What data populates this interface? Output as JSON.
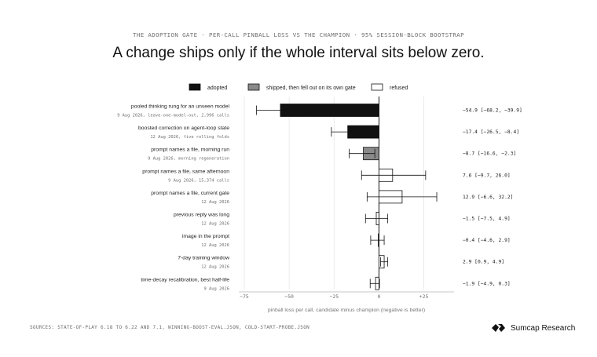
{
  "header": {
    "kicker": "THE ADOPTION GATE · PER-CALL PINBALL LOSS VS THE CHAMPION · 95% SESSION-BLOCK BOOTSTRAP",
    "headline": "A change ships only if the whole interval sits below zero."
  },
  "legend": [
    {
      "key": "adopted",
      "label": "adopted"
    },
    {
      "key": "shipped_fell_out",
      "label": "shipped, then fell out on its own gate"
    },
    {
      "key": "refused",
      "label": "refused"
    }
  ],
  "colors": {
    "adopted": "#111111",
    "shipped_fell_out": "#8a8a8a",
    "refused": "#ffffff",
    "bar_stroke": "#111111",
    "grid": "#e6e6e6",
    "zero_line": "#111111",
    "muted_text": "#6e6e6e"
  },
  "chart_data": {
    "type": "bar",
    "orientation": "horizontal",
    "xlabel": "pinball loss per call, candidate minus champion (negative is better)",
    "xlim": [
      -75,
      30
    ],
    "xticks": [
      {
        "value": -75,
        "label": "−75"
      },
      {
        "value": -50,
        "label": "−50"
      },
      {
        "value": -25,
        "label": "−25"
      },
      {
        "value": 0,
        "label": "0"
      },
      {
        "value": 25,
        "label": "+25"
      }
    ],
    "grid": true,
    "legend_position": "top",
    "rows": [
      {
        "label": "pooled thinking rung for an unseen model",
        "sublabel": "9 Aug 2026, leave-one-model-out, 2,996 calls",
        "value": -54.9,
        "ci": [
          -68.2,
          -39.9
        ],
        "status": "adopted",
        "readout": "−54.9  [−68.2, −39.9]"
      },
      {
        "label": "boosted correction on agent-loop state",
        "sublabel": "12 Aug 2026, five rolling folds",
        "value": -17.4,
        "ci": [
          -26.5,
          -8.4
        ],
        "status": "adopted",
        "readout": "−17.4  [−26.5, −8.4]"
      },
      {
        "label": "prompt names a file, morning run",
        "sublabel": "9 Aug 2026, morning regeneration",
        "value": -8.7,
        "ci": [
          -16.6,
          -2.3
        ],
        "status": "shipped_fell_out",
        "readout": "−8.7  [−16.6, −2.3]"
      },
      {
        "label": "prompt names a file, same afternoon",
        "sublabel": "9 Aug 2026, 15,374 calls",
        "value": 7.6,
        "ci": [
          -9.7,
          26.0
        ],
        "status": "refused",
        "readout": "7.6  [−9.7, 26.0]"
      },
      {
        "label": "prompt names a file, current gate",
        "sublabel": "12 Aug 2026",
        "value": 12.9,
        "ci": [
          -6.6,
          32.2
        ],
        "status": "refused",
        "readout": "12.9  [−6.6, 32.2]"
      },
      {
        "label": "previous reply was long",
        "sublabel": "12 Aug 2026",
        "value": -1.5,
        "ci": [
          -7.5,
          4.9
        ],
        "status": "refused",
        "readout": "−1.5  [−7.5, 4.9]"
      },
      {
        "label": "image in the prompt",
        "sublabel": "12 Aug 2026",
        "value": -0.4,
        "ci": [
          -4.6,
          2.9
        ],
        "status": "refused",
        "readout": "−0.4  [−4.6, 2.9]"
      },
      {
        "label": "7-day training window",
        "sublabel": "12 Aug 2026",
        "value": 2.9,
        "ci": [
          0.9,
          4.9
        ],
        "status": "refused",
        "readout": "2.9  [0.9, 4.9]"
      },
      {
        "label": "time-decay recalibration, best half-life",
        "sublabel": "9 Aug 2026",
        "value": -1.9,
        "ci": [
          -4.9,
          0.3
        ],
        "status": "refused",
        "readout": "−1.9  [−4.9, 0.3]"
      }
    ]
  },
  "footer": {
    "sources": "SOURCES: STATE-OF-PLAY 6.18 TO 6.22 AND 7.1, WINNING-BOOST-EVAL.JSON, COLD-START-PROBE.JSON",
    "brand": "Sumcap Research",
    "brand_icon": "sumcap-logo-icon"
  }
}
